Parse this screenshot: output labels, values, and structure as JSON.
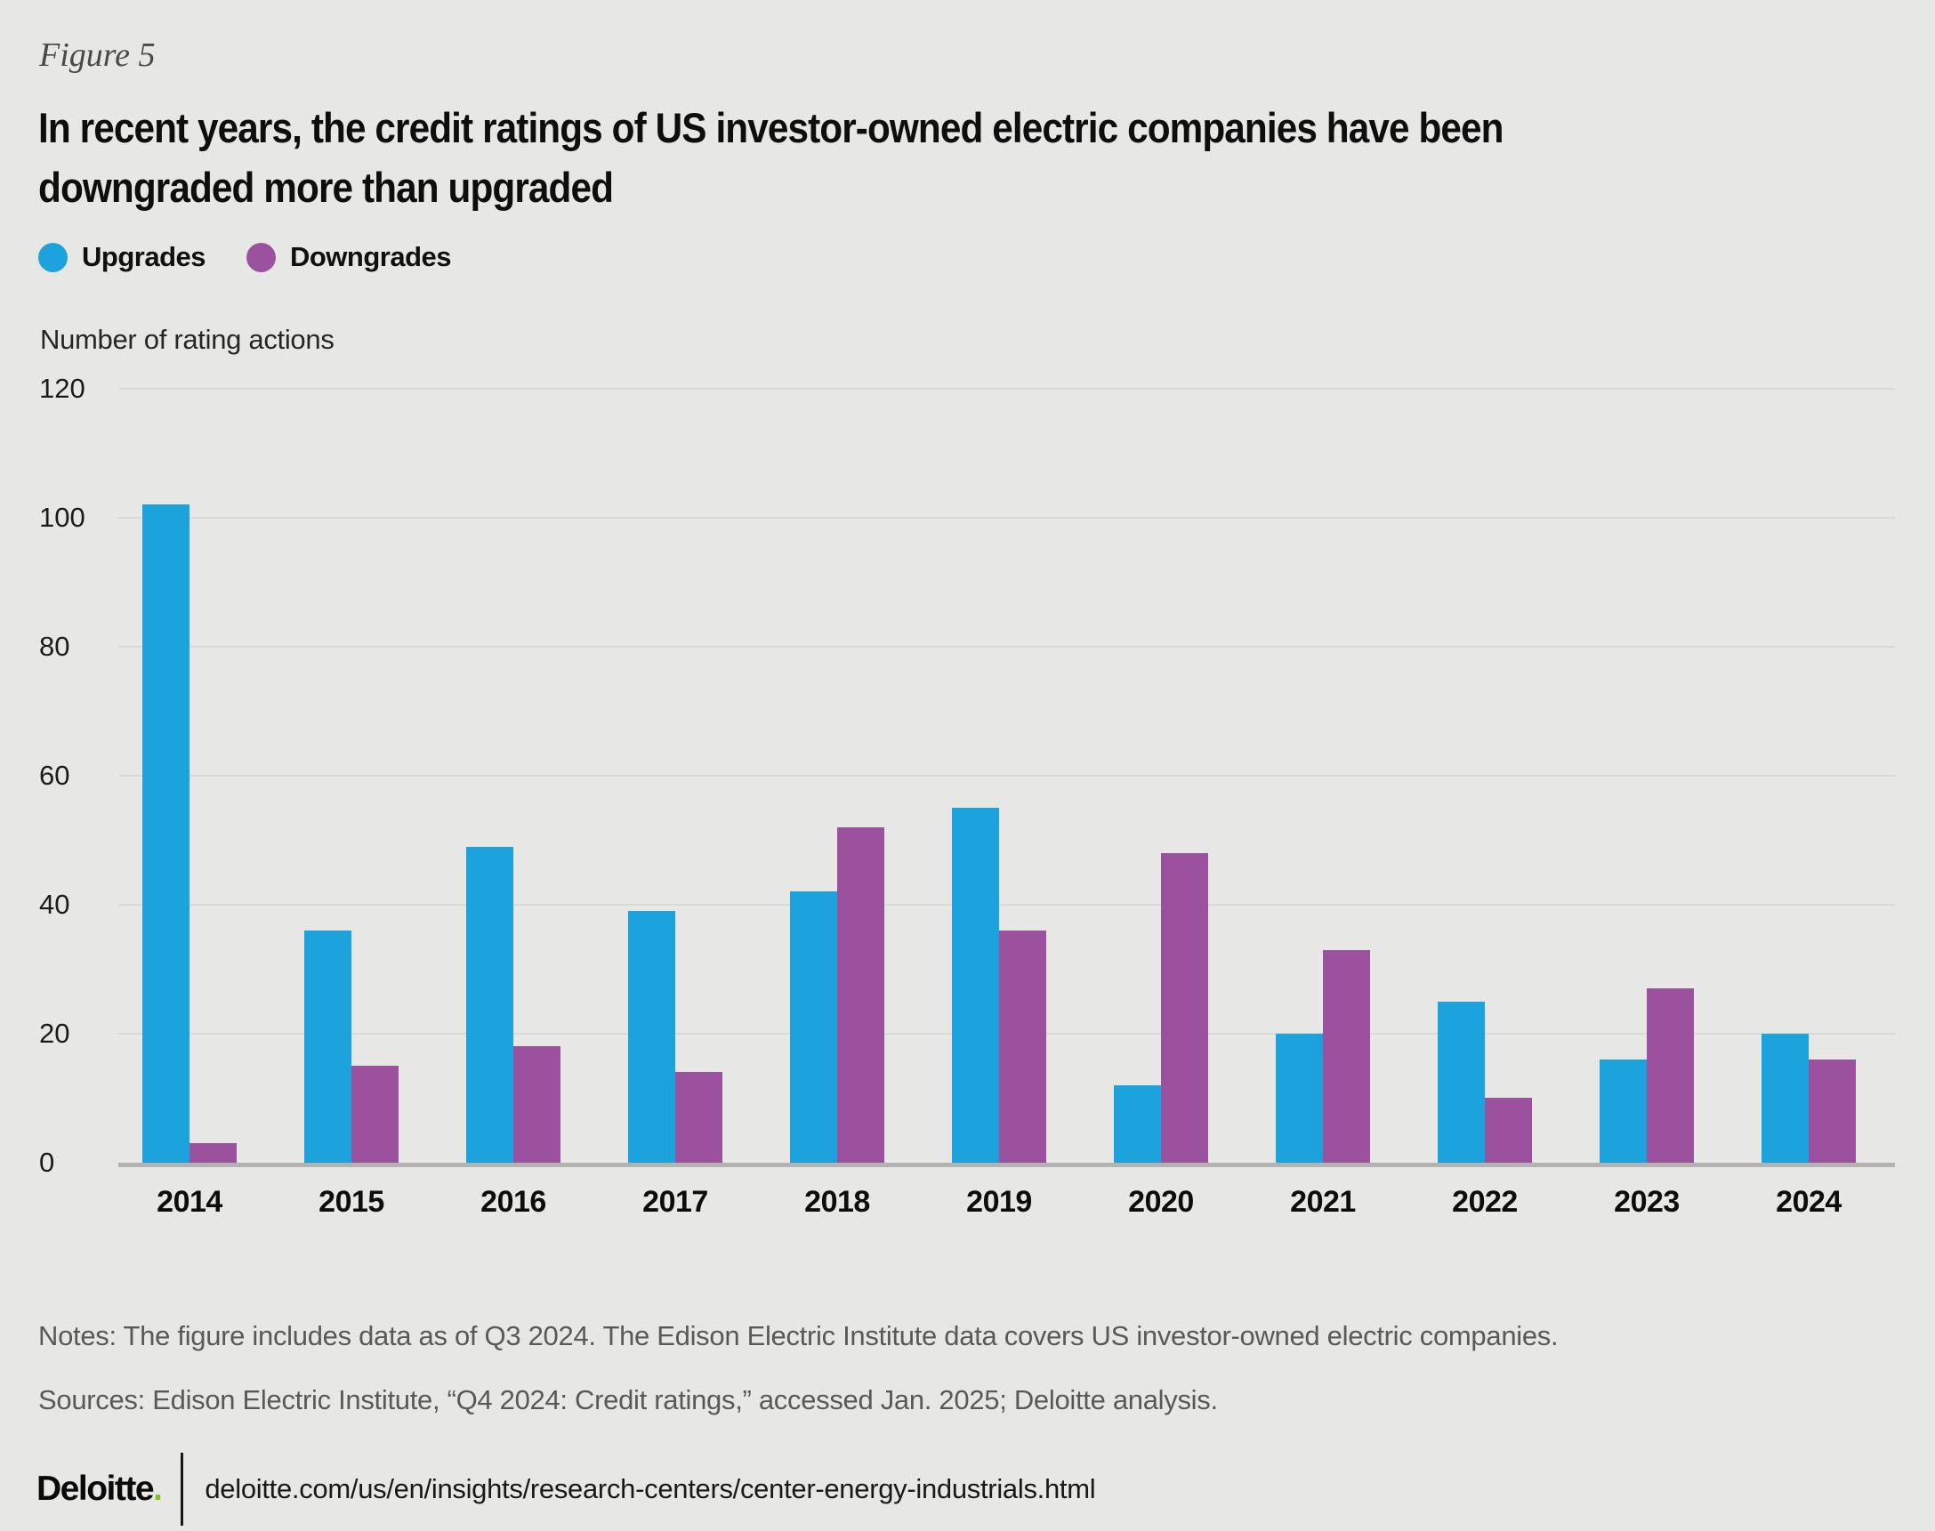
{
  "figure_label": "Figure 5",
  "title_lines": [
    "In recent years, the credit ratings of US investor-owned electric companies have been",
    "downgraded more than upgraded"
  ],
  "legend": [
    {
      "label": "Upgrades",
      "color": "#1ca2dc"
    },
    {
      "label": "Downgrades",
      "color": "#9b519e"
    }
  ],
  "axis_title": "Number of rating actions",
  "chart_data": {
    "type": "bar",
    "title": "In recent years, the credit ratings of US investor-owned electric companies have been downgraded more than upgraded",
    "categories": [
      "2014",
      "2015",
      "2016",
      "2017",
      "2018",
      "2019",
      "2020",
      "2021",
      "2022",
      "2023",
      "2024"
    ],
    "series": [
      {
        "name": "Upgrades",
        "color": "#1ca2dc",
        "values": [
          102,
          36,
          49,
          39,
          42,
          55,
          12,
          20,
          25,
          16,
          20
        ]
      },
      {
        "name": "Downgrades",
        "color": "#9b519e",
        "values": [
          3,
          15,
          18,
          14,
          52,
          36,
          48,
          33,
          10,
          27,
          16
        ]
      }
    ],
    "xlabel": "",
    "ylabel": "Number of rating actions",
    "ylim": [
      0,
      120
    ],
    "yticks": [
      0,
      20,
      40,
      60,
      80,
      100,
      120
    ],
    "grid": true,
    "legend_position": "top-left"
  },
  "notes": "Notes: The figure includes data as of Q3 2024. The Edison Electric Institute data covers US investor-owned electric companies.",
  "sources": "Sources:  Edison Electric Institute, “Q4 2024: Credit ratings,” accessed Jan. 2025; Deloitte analysis.",
  "footer": {
    "brand": "Deloitte",
    "brand_dot": ".",
    "url": "deloitte.com/us/en/insights/research-centers/center-energy-industrials.html"
  },
  "colors": {
    "background": "#e7e8e5",
    "gridline": "#d9d9d6",
    "axis_line": "#b3b3b1",
    "upgrades": "#1ca2dc",
    "downgrades": "#9b519e",
    "brand_green": "#86bc25"
  }
}
